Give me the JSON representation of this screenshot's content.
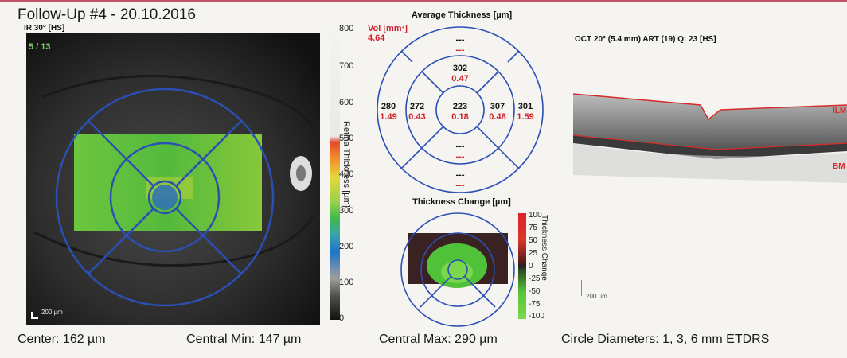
{
  "header": {
    "title": "Follow-Up #4 - 20.10.2016"
  },
  "fundus": {
    "label": "IR 30° [HS]",
    "frame_count": "5 / 13",
    "scale_label": "200 µm",
    "colorbar": {
      "ticks": [
        "800",
        "700",
        "600",
        "500",
        "400",
        "300",
        "200",
        "100",
        "0"
      ],
      "axis_label": "Retina Thickness [µm]"
    }
  },
  "average_thickness": {
    "title": "Average Thickness [µm]",
    "vol_label": "Vol [mm³]",
    "vol_value": "4.64",
    "outer_top": {
      "thickness": "---",
      "volume": "---"
    },
    "inner_top": {
      "thickness": "302",
      "volume": "0.47"
    },
    "outer_left": {
      "thickness": "280",
      "volume": "1.49"
    },
    "inner_left": {
      "thickness": "272",
      "volume": "0.43"
    },
    "center": {
      "thickness": "223",
      "volume": "0.18"
    },
    "inner_right": {
      "thickness": "307",
      "volume": "0.48"
    },
    "outer_right": {
      "thickness": "301",
      "volume": "1.59"
    },
    "inner_bottom": {
      "thickness": "---",
      "volume": "---"
    },
    "outer_bottom": {
      "thickness": "---",
      "volume": "---"
    }
  },
  "thickness_change": {
    "title": "Thickness Change [µm]",
    "ticks": [
      "100",
      "75",
      "50",
      "25",
      "0",
      "-25",
      "-50",
      "-75",
      "-100"
    ],
    "axis_label": "Thickness Change"
  },
  "oct": {
    "label": "OCT 20° (5.4 mm) ART (19) Q: 23 [HS]",
    "ilm_label": "ILM",
    "bm_label": "BM",
    "scale_label": "200 µm",
    "line_color": "#d92a2a"
  },
  "footer": {
    "center": "Center: 162 µm",
    "central_min": "Central Min: 147 µm",
    "central_max": "Central Max: 290 µm",
    "circle_diameters": "Circle Diameters:  1, 3, 6 mm ETDRS"
  }
}
